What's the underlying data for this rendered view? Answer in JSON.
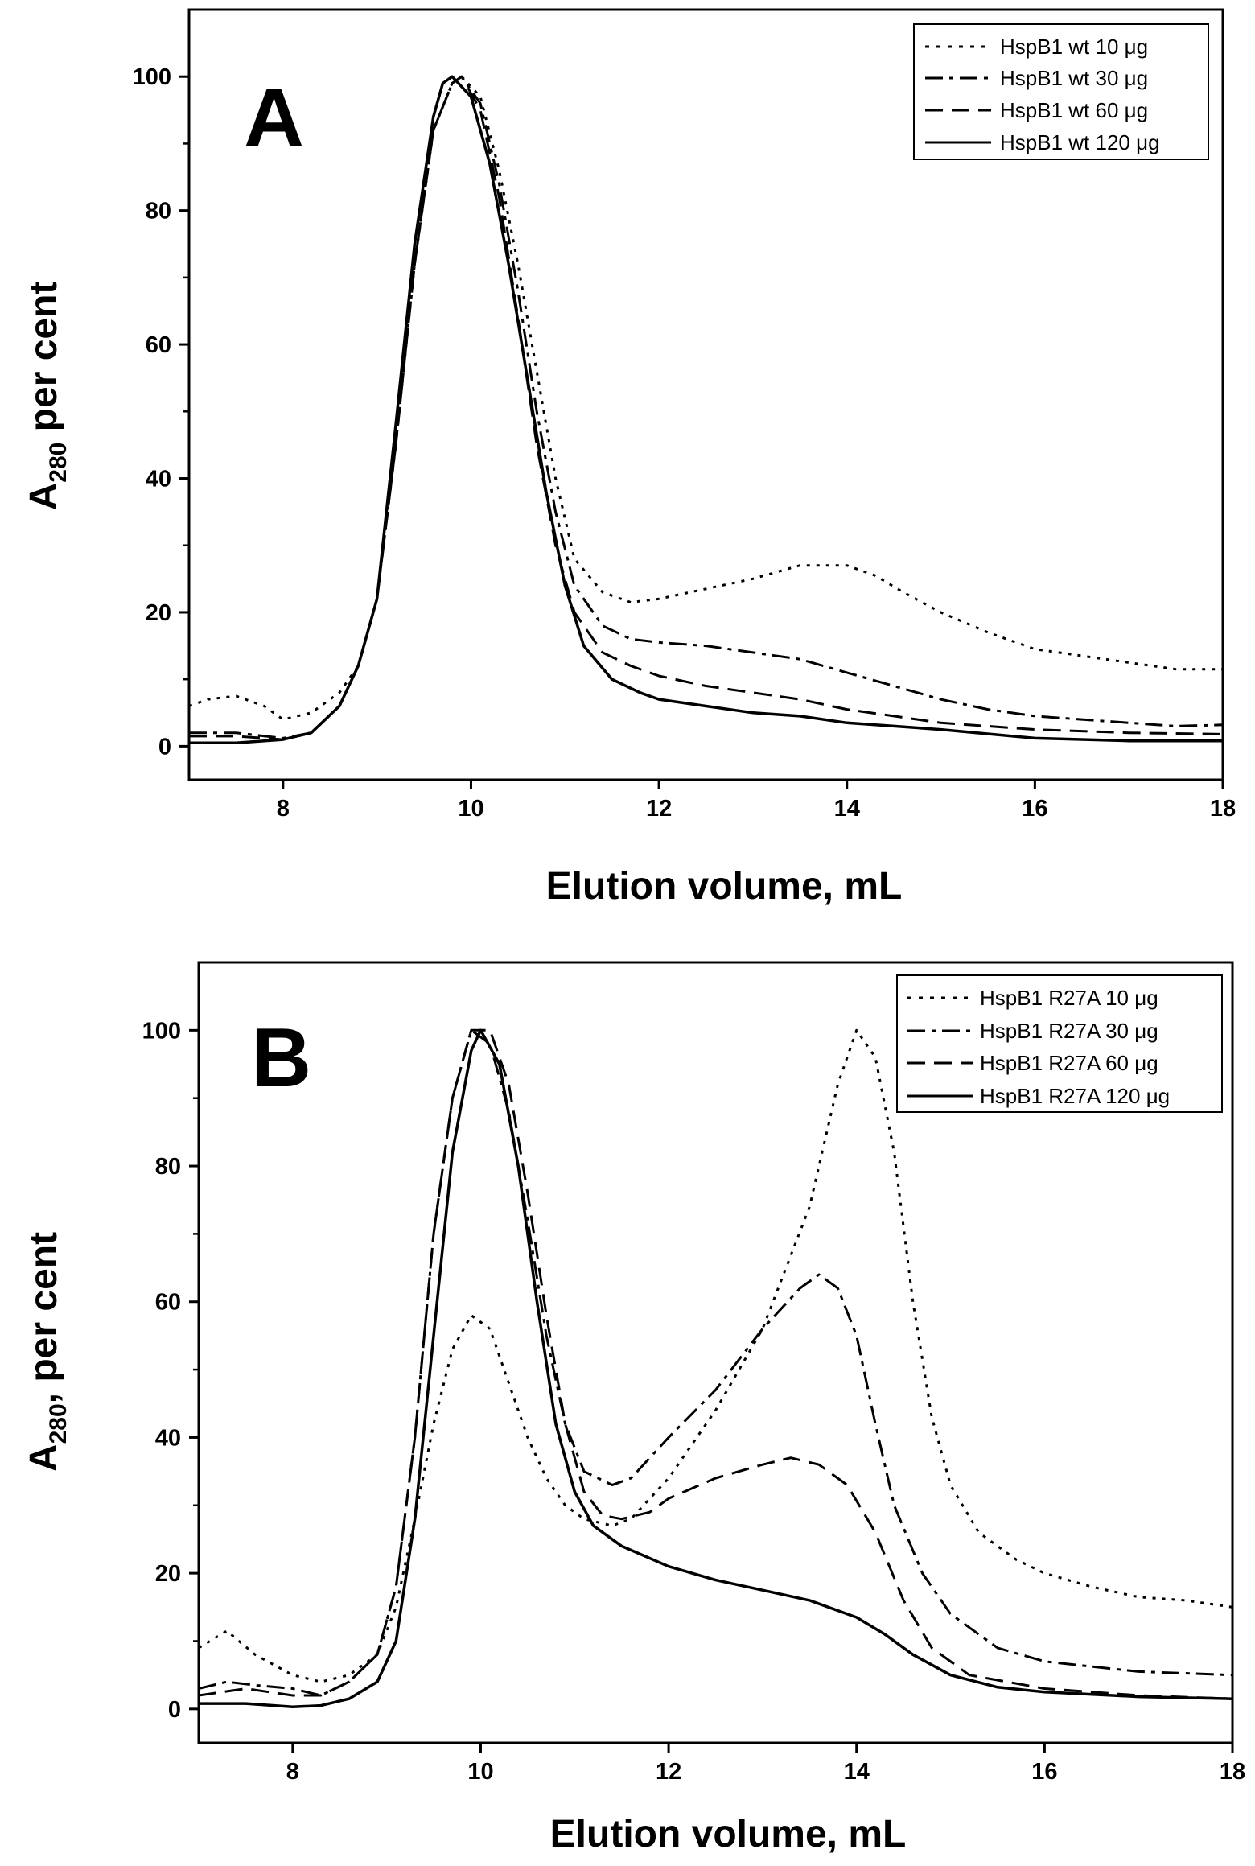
{
  "chart_data": [
    {
      "type": "line",
      "panel_label": "A",
      "xlabel": "Elution volume, mL",
      "ylabel": {
        "main": "A",
        "sub": "280",
        "suffix": " per cent"
      },
      "xlim": [
        7,
        18
      ],
      "ylim": [
        -5,
        110
      ],
      "xticks": [
        8,
        10,
        12,
        14,
        16,
        18
      ],
      "yticks": [
        0,
        20,
        40,
        60,
        80,
        100
      ],
      "grid": false,
      "legend_position": "top-right",
      "series": [
        {
          "name": "HspB1 wt 10 μg",
          "style": "dotted",
          "points": [
            [
              7,
              6
            ],
            [
              7.2,
              7
            ],
            [
              7.5,
              7.5
            ],
            [
              7.8,
              6
            ],
            [
              8,
              4
            ],
            [
              8.3,
              5
            ],
            [
              8.6,
              8
            ],
            [
              8.8,
              12
            ],
            [
              9,
              22
            ],
            [
              9.2,
              45
            ],
            [
              9.4,
              72
            ],
            [
              9.6,
              92
            ],
            [
              9.8,
              99
            ],
            [
              9.9,
              100
            ],
            [
              10.1,
              97
            ],
            [
              10.3,
              86
            ],
            [
              10.5,
              72
            ],
            [
              10.7,
              56
            ],
            [
              10.9,
              40
            ],
            [
              11.1,
              28
            ],
            [
              11.4,
              23
            ],
            [
              11.7,
              21.5
            ],
            [
              12,
              22
            ],
            [
              12.5,
              23.5
            ],
            [
              13,
              25
            ],
            [
              13.5,
              27
            ],
            [
              14,
              27
            ],
            [
              14.3,
              25.5
            ],
            [
              14.6,
              23
            ],
            [
              15,
              20
            ],
            [
              15.5,
              17
            ],
            [
              16,
              14.5
            ],
            [
              16.5,
              13.5
            ],
            [
              17,
              12.5
            ],
            [
              17.5,
              11.5
            ],
            [
              18,
              11.5
            ]
          ]
        },
        {
          "name": "HspB1 wt 30 μg",
          "style": "dash-dot",
          "points": [
            [
              7,
              2
            ],
            [
              7.5,
              2
            ],
            [
              8,
              1.2
            ],
            [
              8.3,
              2
            ],
            [
              8.6,
              6
            ],
            [
              8.8,
              12
            ],
            [
              9,
              22
            ],
            [
              9.2,
              45
            ],
            [
              9.4,
              72
            ],
            [
              9.6,
              92
            ],
            [
              9.8,
              99
            ],
            [
              9.9,
              100
            ],
            [
              10.1,
              96
            ],
            [
              10.3,
              84
            ],
            [
              10.5,
              68
            ],
            [
              10.7,
              50
            ],
            [
              10.9,
              35
            ],
            [
              11.1,
              24
            ],
            [
              11.4,
              18
            ],
            [
              11.7,
              16
            ],
            [
              12,
              15.5
            ],
            [
              12.5,
              15
            ],
            [
              13,
              14
            ],
            [
              13.5,
              13
            ],
            [
              14,
              11
            ],
            [
              14.5,
              9
            ],
            [
              15,
              7
            ],
            [
              15.5,
              5.5
            ],
            [
              16,
              4.5
            ],
            [
              17,
              3.5
            ],
            [
              17.5,
              3
            ],
            [
              18,
              3.2
            ]
          ]
        },
        {
          "name": "HspB1 wt 60 μg",
          "style": "dashed",
          "points": [
            [
              7,
              1.5
            ],
            [
              7.5,
              1.5
            ],
            [
              8,
              1
            ],
            [
              8.3,
              2
            ],
            [
              8.6,
              6
            ],
            [
              8.8,
              12
            ],
            [
              9,
              22
            ],
            [
              9.2,
              45
            ],
            [
              9.4,
              72
            ],
            [
              9.6,
              92
            ],
            [
              9.8,
              99
            ],
            [
              9.9,
              100
            ],
            [
              10.1,
              95
            ],
            [
              10.3,
              82
            ],
            [
              10.5,
              64
            ],
            [
              10.7,
              45
            ],
            [
              10.9,
              30
            ],
            [
              11.1,
              20
            ],
            [
              11.4,
              14
            ],
            [
              11.7,
              12
            ],
            [
              12,
              10.5
            ],
            [
              12.5,
              9
            ],
            [
              13,
              8
            ],
            [
              13.5,
              7
            ],
            [
              14,
              5.5
            ],
            [
              14.5,
              4.5
            ],
            [
              15,
              3.5
            ],
            [
              16,
              2.5
            ],
            [
              17,
              2
            ],
            [
              18,
              1.8
            ]
          ]
        },
        {
          "name": "HspB1 wt 120 μg",
          "style": "solid",
          "points": [
            [
              7,
              0.5
            ],
            [
              7.5,
              0.5
            ],
            [
              8,
              1
            ],
            [
              8.3,
              2
            ],
            [
              8.6,
              6
            ],
            [
              8.8,
              12
            ],
            [
              9,
              22
            ],
            [
              9.2,
              48
            ],
            [
              9.4,
              75
            ],
            [
              9.6,
              94
            ],
            [
              9.7,
              99
            ],
            [
              9.8,
              100
            ],
            [
              10,
              97
            ],
            [
              10.2,
              87
            ],
            [
              10.4,
              72
            ],
            [
              10.6,
              55
            ],
            [
              10.8,
              38
            ],
            [
              11,
              24
            ],
            [
              11.2,
              15
            ],
            [
              11.5,
              10
            ],
            [
              11.8,
              8
            ],
            [
              12,
              7
            ],
            [
              12.5,
              6
            ],
            [
              13,
              5
            ],
            [
              13.5,
              4.5
            ],
            [
              14,
              3.5
            ],
            [
              14.5,
              3
            ],
            [
              15,
              2.5
            ],
            [
              16,
              1.2
            ],
            [
              17,
              0.8
            ],
            [
              18,
              0.8
            ]
          ]
        }
      ]
    },
    {
      "type": "line",
      "panel_label": "B",
      "xlabel": "Elution volume, mL",
      "ylabel": {
        "main": "A",
        "sub": "280",
        "suffix": ", per cent"
      },
      "xlim": [
        7,
        18
      ],
      "ylim": [
        -5,
        110
      ],
      "xticks": [
        8,
        10,
        12,
        14,
        16,
        18
      ],
      "yticks": [
        0,
        20,
        40,
        60,
        80,
        100
      ],
      "grid": false,
      "legend_position": "top-right",
      "series": [
        {
          "name": "HspB1 R27A 10 μg",
          "style": "dotted",
          "points": [
            [
              7,
              9
            ],
            [
              7.3,
              11.5
            ],
            [
              7.6,
              8
            ],
            [
              8,
              5
            ],
            [
              8.3,
              4
            ],
            [
              8.6,
              5
            ],
            [
              8.9,
              8
            ],
            [
              9.1,
              15
            ],
            [
              9.3,
              28
            ],
            [
              9.5,
              42
            ],
            [
              9.7,
              53
            ],
            [
              9.9,
              58
            ],
            [
              10.1,
              56
            ],
            [
              10.3,
              48
            ],
            [
              10.5,
              40
            ],
            [
              10.7,
              34
            ],
            [
              10.9,
              30
            ],
            [
              11.1,
              28
            ],
            [
              11.4,
              27
            ],
            [
              11.6,
              28
            ],
            [
              12,
              34
            ],
            [
              12.5,
              44
            ],
            [
              13,
              56
            ],
            [
              13.5,
              74
            ],
            [
              13.8,
              92
            ],
            [
              14,
              100
            ],
            [
              14.2,
              96
            ],
            [
              14.4,
              82
            ],
            [
              14.6,
              60
            ],
            [
              14.8,
              43
            ],
            [
              15,
              33
            ],
            [
              15.3,
              26
            ],
            [
              15.7,
              22
            ],
            [
              16,
              20
            ],
            [
              16.5,
              18
            ],
            [
              17,
              16.5
            ],
            [
              17.5,
              16
            ],
            [
              18,
              15
            ]
          ]
        },
        {
          "name": "HspB1 R27A 30 μg",
          "style": "dash-dot",
          "points": [
            [
              7,
              3
            ],
            [
              7.3,
              4
            ],
            [
              7.6,
              3.5
            ],
            [
              8,
              3
            ],
            [
              8.3,
              2
            ],
            [
              8.6,
              4
            ],
            [
              8.9,
              8
            ],
            [
              9.1,
              18
            ],
            [
              9.3,
              40
            ],
            [
              9.5,
              70
            ],
            [
              9.7,
              90
            ],
            [
              9.9,
              100
            ],
            [
              10.1,
              98
            ],
            [
              10.3,
              88
            ],
            [
              10.5,
              72
            ],
            [
              10.7,
              55
            ],
            [
              10.9,
              42
            ],
            [
              11.1,
              35
            ],
            [
              11.4,
              33
            ],
            [
              11.6,
              34
            ],
            [
              12,
              40
            ],
            [
              12.5,
              47
            ],
            [
              13,
              56
            ],
            [
              13.4,
              62
            ],
            [
              13.6,
              64
            ],
            [
              13.8,
              62
            ],
            [
              14,
              55
            ],
            [
              14.2,
              42
            ],
            [
              14.4,
              30
            ],
            [
              14.7,
              20
            ],
            [
              15,
              14
            ],
            [
              15.5,
              9
            ],
            [
              16,
              7
            ],
            [
              17,
              5.5
            ],
            [
              18,
              5
            ]
          ]
        },
        {
          "name": "HspB1 R27A 60 μg",
          "style": "dashed",
          "points": [
            [
              7,
              2
            ],
            [
              7.5,
              3
            ],
            [
              8,
              2
            ],
            [
              8.3,
              2
            ],
            [
              8.6,
              4
            ],
            [
              8.9,
              8
            ],
            [
              9.1,
              18
            ],
            [
              9.3,
              40
            ],
            [
              9.5,
              70
            ],
            [
              9.7,
              90
            ],
            [
              9.9,
              100
            ],
            [
              10.1,
              100
            ],
            [
              10.3,
              92
            ],
            [
              10.5,
              76
            ],
            [
              10.7,
              58
            ],
            [
              10.9,
              42
            ],
            [
              11.1,
              32
            ],
            [
              11.3,
              28.5
            ],
            [
              11.5,
              28
            ],
            [
              11.8,
              29
            ],
            [
              12,
              31
            ],
            [
              12.5,
              34
            ],
            [
              13,
              36
            ],
            [
              13.3,
              37
            ],
            [
              13.6,
              36
            ],
            [
              13.9,
              33
            ],
            [
              14.2,
              26
            ],
            [
              14.5,
              16
            ],
            [
              14.8,
              9
            ],
            [
              15.2,
              5
            ],
            [
              16,
              3
            ],
            [
              17,
              2
            ],
            [
              18,
              1.5
            ]
          ]
        },
        {
          "name": "HspB1 R27A 120 μg",
          "style": "solid",
          "points": [
            [
              7,
              0.8
            ],
            [
              7.5,
              0.8
            ],
            [
              8,
              0.3
            ],
            [
              8.3,
              0.5
            ],
            [
              8.6,
              1.5
            ],
            [
              8.9,
              4
            ],
            [
              9.1,
              10
            ],
            [
              9.3,
              28
            ],
            [
              9.5,
              55
            ],
            [
              9.7,
              82
            ],
            [
              9.9,
              97
            ],
            [
              10,
              100
            ],
            [
              10.2,
              95
            ],
            [
              10.4,
              80
            ],
            [
              10.6,
              60
            ],
            [
              10.8,
              42
            ],
            [
              11,
              32
            ],
            [
              11.2,
              27
            ],
            [
              11.5,
              24
            ],
            [
              12,
              21
            ],
            [
              12.5,
              19
            ],
            [
              13,
              17.5
            ],
            [
              13.5,
              16
            ],
            [
              14,
              13.5
            ],
            [
              14.3,
              11
            ],
            [
              14.6,
              8
            ],
            [
              15,
              5
            ],
            [
              15.5,
              3.2
            ],
            [
              16,
              2.5
            ],
            [
              17,
              1.8
            ],
            [
              18,
              1.5
            ]
          ]
        }
      ]
    }
  ]
}
